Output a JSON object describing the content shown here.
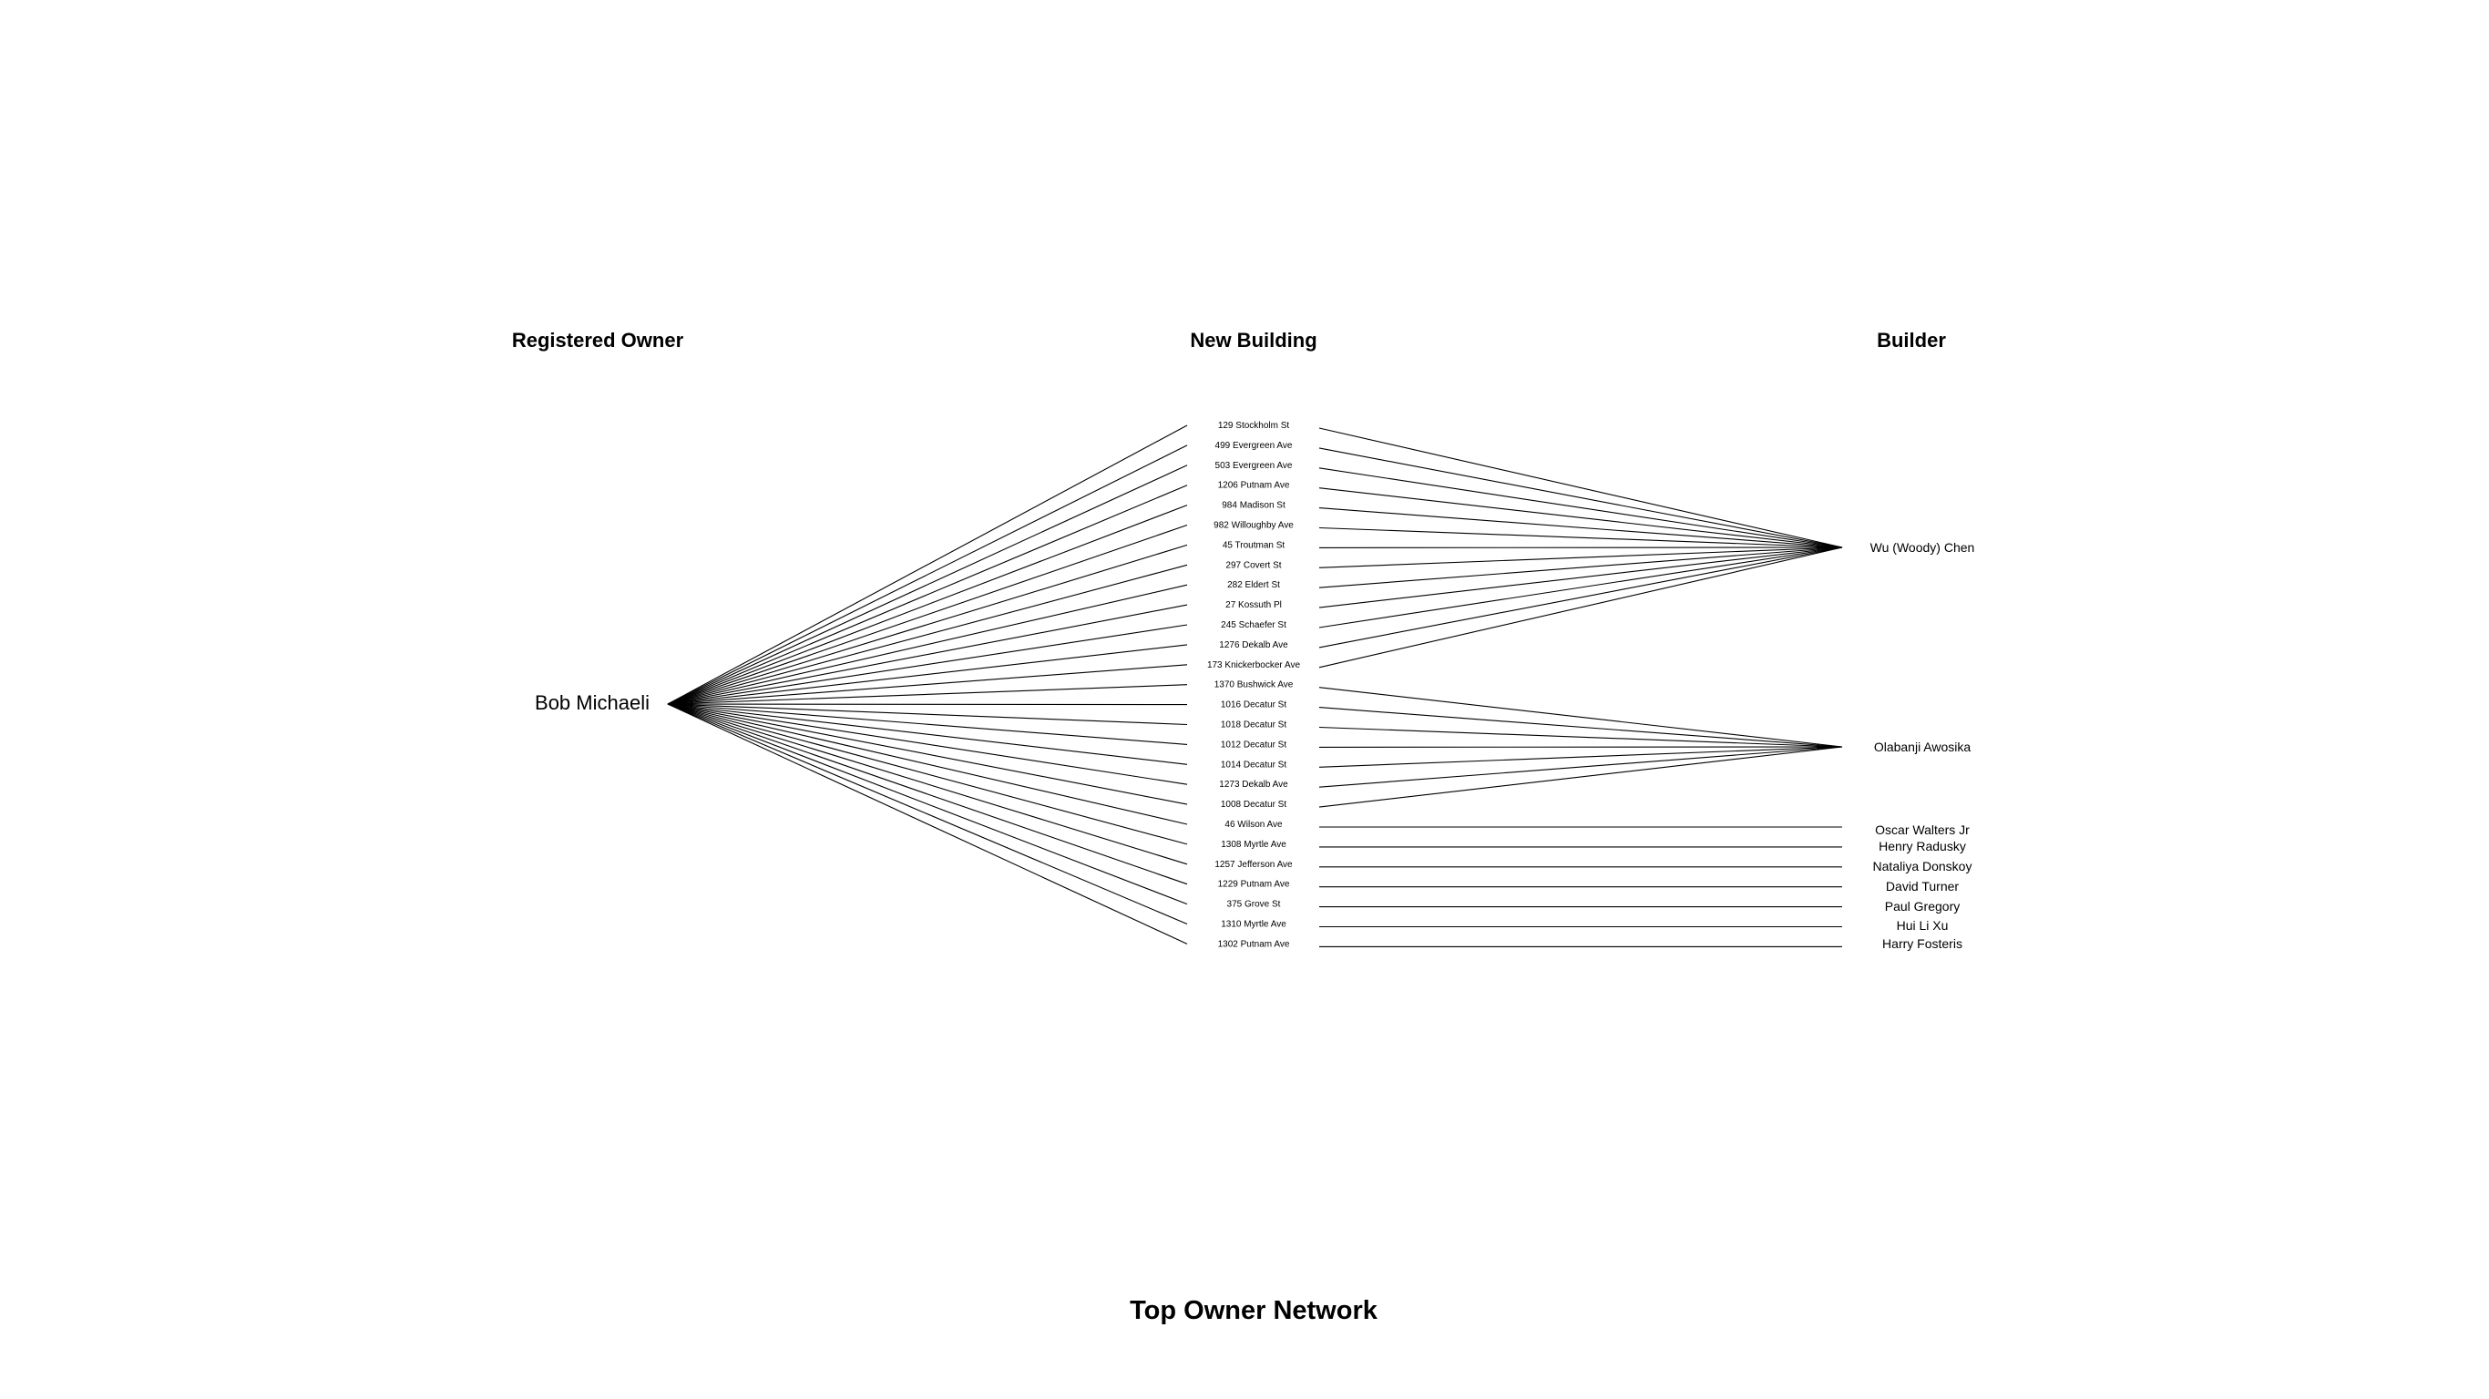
{
  "headers": {
    "registered_owner": "Registered Owner",
    "new_building": "New Building",
    "builder": "Builder"
  },
  "title": "Top Owner Network",
  "owner": "Bob Michaeli",
  "buildings": [
    "129 Stockholm St",
    "499 Evergreen Ave",
    "503 Evergreen Ave",
    "1206 Putnam Ave",
    "984 Madison St",
    "982 Willoughby Ave",
    "45 Troutman St",
    "297 Covert St",
    "282 Eldert St",
    "27 Kossuth Pl",
    "245 Schaefer St",
    "1276 Dekalb Ave",
    "173 Knickerbocker Ave",
    "1370 Bushwick Ave",
    "1016 Decatur St",
    "1018 Decatur St",
    "1012 Decatur St",
    "1014 Decatur St",
    "1273 Dekalb Ave",
    "1008 Decatur St",
    "46 Wilson Ave",
    "1308 Myrtle Ave",
    "1257 Jefferson Ave",
    "1229 Putnam Ave",
    "375 Grove St",
    "1310 Myrtle Ave",
    "1302 Putnam Ave"
  ],
  "builders": [
    "Wu (Woody) Chen",
    "Olabanji Awosika",
    "Oscar Walters Jr",
    "Henry Radusky",
    "Nataliya Donskoy",
    "David Turner",
    "Paul Gregory",
    "Hui Li Xu",
    "Harry Fosteris"
  ],
  "building_to_builder": [
    0,
    0,
    0,
    0,
    0,
    0,
    0,
    0,
    0,
    0,
    0,
    0,
    0,
    1,
    1,
    1,
    1,
    1,
    1,
    1,
    2,
    3,
    4,
    5,
    6,
    7,
    8
  ]
}
